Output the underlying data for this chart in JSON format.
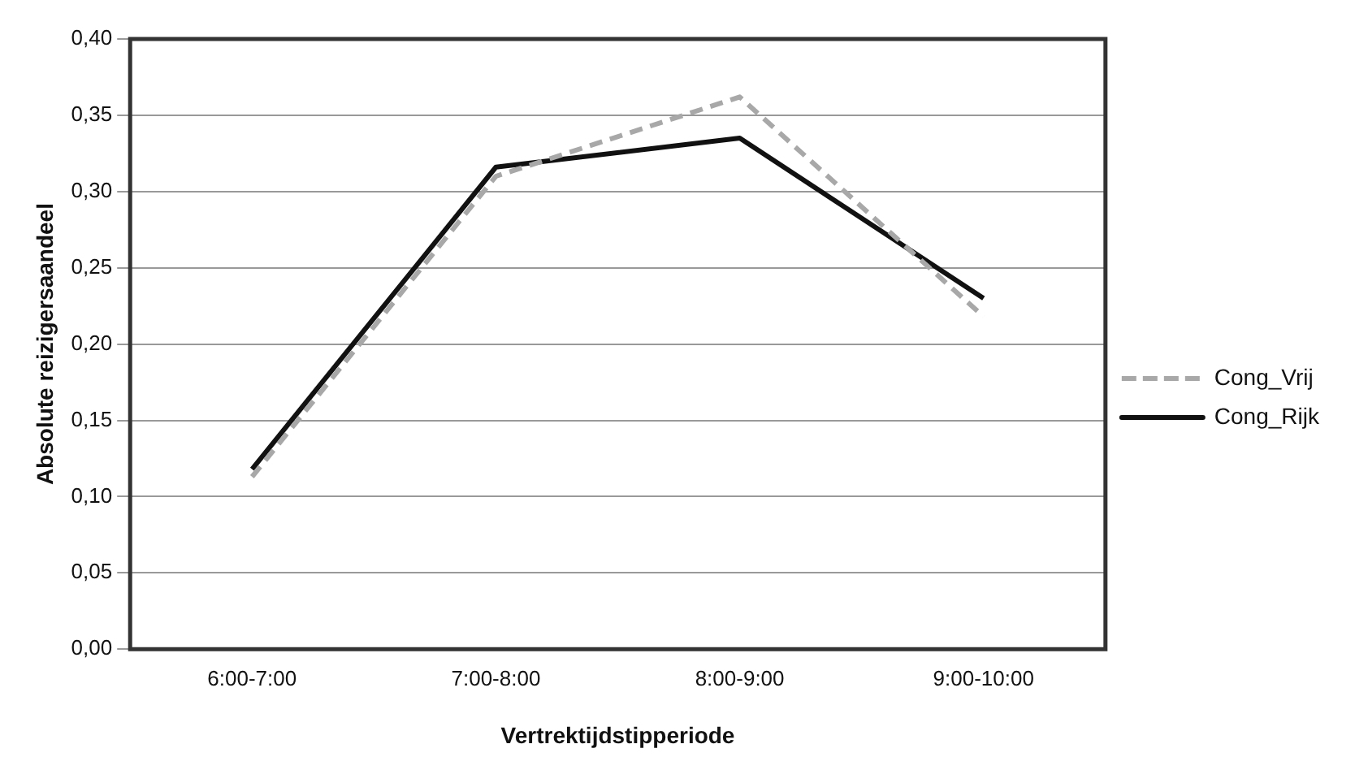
{
  "chart_data": {
    "type": "line",
    "xlabel": "Vertrektijdstipperiode",
    "ylabel": "Absolute reizigersaandeel",
    "categories": [
      "6:00-7:00",
      "7:00-8:00",
      "8:00-9:00",
      "9:00-10:00"
    ],
    "series": [
      {
        "name": "Cong_Vrij",
        "color": "#a8a8a8",
        "line_style": "dashed",
        "values": [
          0.113,
          0.31,
          0.362,
          0.218
        ]
      },
      {
        "name": "Cong_Rijk",
        "color": "#111111",
        "line_style": "solid",
        "values": [
          0.118,
          0.316,
          0.335,
          0.23
        ]
      }
    ],
    "ylim": [
      0,
      0.4
    ],
    "yticks": [
      {
        "value": 0,
        "label": "0,00"
      },
      {
        "value": 0.05,
        "label": "0,05"
      },
      {
        "value": 0.1,
        "label": "0,10"
      },
      {
        "value": 0.15,
        "label": "0,15"
      },
      {
        "value": 0.2,
        "label": "0,20"
      },
      {
        "value": 0.25,
        "label": "0,25"
      },
      {
        "value": 0.3,
        "label": "0,30"
      },
      {
        "value": 0.35,
        "label": "0,35"
      },
      {
        "value": 0.4,
        "label": "0,40"
      }
    ],
    "grid": "y",
    "legend": "right",
    "marker": "none"
  }
}
